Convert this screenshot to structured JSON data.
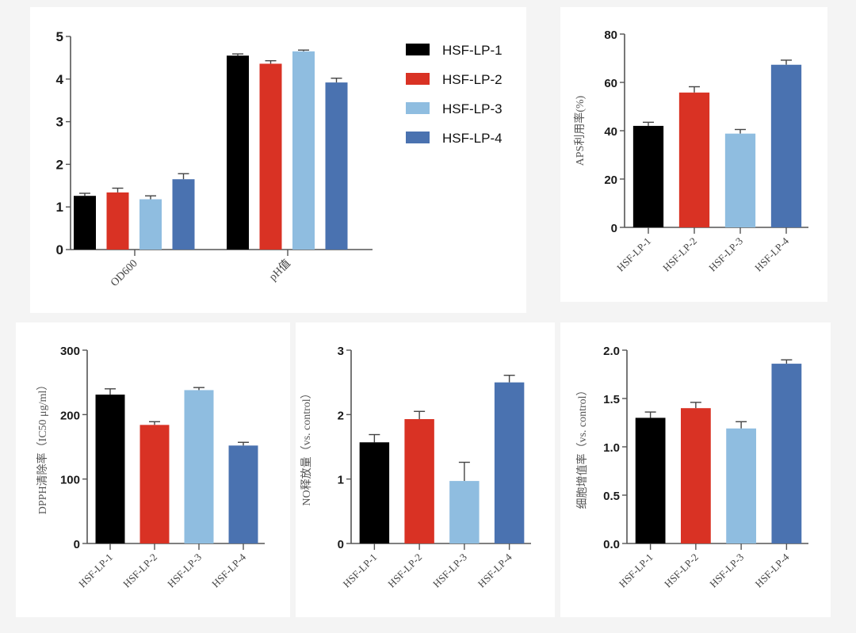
{
  "colors": {
    "background": "#f4f4f4",
    "panel": "#ffffff",
    "axis": "#555555",
    "series": [
      "#000000",
      "#d93224",
      "#8fbde0",
      "#4a72b0"
    ]
  },
  "chart_data": [
    {
      "id": "growth-ph",
      "type": "bar",
      "title": "",
      "xlabel": "",
      "ylabel": "",
      "categories": [
        "OD600",
        "pH值"
      ],
      "series": [
        {
          "name": "HSF-LP-1",
          "values": [
            1.26,
            4.55
          ],
          "errors": [
            0.06,
            0.04
          ]
        },
        {
          "name": "HSF-LP-2",
          "values": [
            1.34,
            4.36
          ],
          "errors": [
            0.1,
            0.07
          ]
        },
        {
          "name": "HSF-LP-3",
          "values": [
            1.18,
            4.65
          ],
          "errors": [
            0.08,
            0.03
          ]
        },
        {
          "name": "HSF-LP-4",
          "values": [
            1.65,
            3.92
          ],
          "errors": [
            0.13,
            0.1
          ]
        }
      ],
      "ylim": [
        0,
        5
      ],
      "yticks": [
        "0",
        "1",
        "2",
        "3",
        "4",
        "5"
      ],
      "grid": false,
      "legend": {
        "placement": "right",
        "entries": [
          "HSF-LP-1",
          "HSF-LP-2",
          "HSF-LP-3",
          "HSF-LP-4"
        ]
      }
    },
    {
      "id": "aps-utilization",
      "type": "bar",
      "title": "",
      "xlabel": "",
      "ylabel": "APS利用率(%)",
      "categories": [
        "HSF-LP-1",
        "HSF-LP-2",
        "HSF-LP-3",
        "HSF-LP-4"
      ],
      "values": [
        42.0,
        55.8,
        38.8,
        67.3
      ],
      "errors": [
        1.5,
        2.4,
        1.7,
        1.9
      ],
      "ylim": [
        0,
        80
      ],
      "yticks": [
        "0",
        "20",
        "40",
        "60",
        "80"
      ],
      "grid": false
    },
    {
      "id": "dpph-scavenging",
      "type": "bar",
      "title": "",
      "xlabel": "",
      "ylabel": "DPPH清除率（IC50 μg/ml）",
      "categories": [
        "HSF-LP-1",
        "HSF-LP-2",
        "HSF-LP-3",
        "HSF-LP-4"
      ],
      "values": [
        231,
        184,
        238,
        152
      ],
      "errors": [
        9,
        5,
        4,
        5
      ],
      "ylim": [
        0,
        300
      ],
      "yticks": [
        "0",
        "100",
        "200",
        "300"
      ],
      "grid": false
    },
    {
      "id": "no-release",
      "type": "bar",
      "title": "",
      "xlabel": "",
      "ylabel": "NO释放量（vs. control）",
      "categories": [
        "HSF-LP-1",
        "HSF-LP-2",
        "HSF-LP-3",
        "HSF-LP-4"
      ],
      "values": [
        1.57,
        1.93,
        0.97,
        2.5
      ],
      "errors": [
        0.12,
        0.12,
        0.29,
        0.11
      ],
      "ylim": [
        0,
        3
      ],
      "yticks": [
        "0",
        "1",
        "2",
        "3"
      ],
      "grid": false
    },
    {
      "id": "cell-proliferation",
      "type": "bar",
      "title": "",
      "xlabel": "",
      "ylabel": "细胞增值率（vs. control）",
      "categories": [
        "HSF-LP-1",
        "HSF-LP-2",
        "HSF-LP-3",
        "HSF-LP-4"
      ],
      "values": [
        1.3,
        1.4,
        1.19,
        1.86
      ],
      "errors": [
        0.06,
        0.06,
        0.07,
        0.04
      ],
      "ylim": [
        0,
        2.0
      ],
      "yticks": [
        "0.0",
        "0.5",
        "1.0",
        "1.5",
        "2.0"
      ],
      "grid": false
    }
  ]
}
